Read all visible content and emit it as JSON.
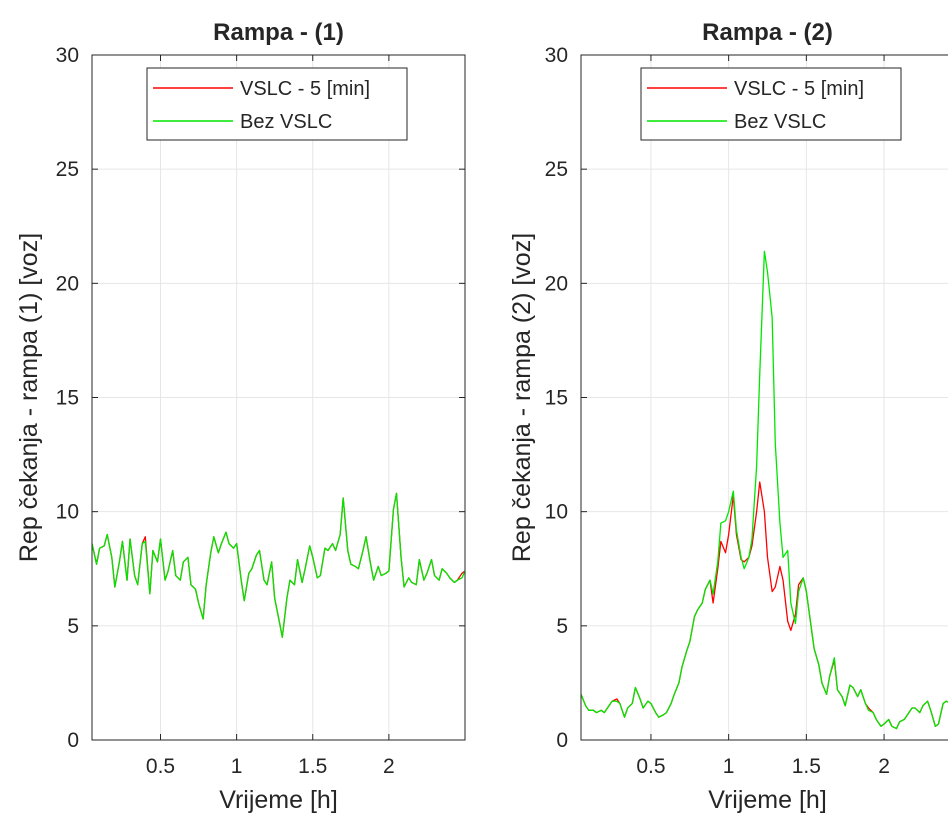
{
  "colors": {
    "series_1": "#ff0000",
    "series_2": "#00e600",
    "grid": "#e6e6e6",
    "axis": "#262626"
  },
  "chart_data": [
    {
      "type": "line",
      "title": "Rampa - (1)",
      "xlabel": "Vrijeme [h]",
      "ylabel": "Rep čekanja - rampa (1) [voz]",
      "xlim": [
        0.05,
        2.5
      ],
      "ylim": [
        0,
        30
      ],
      "xticks": [
        0.5,
        1,
        1.5,
        2
      ],
      "xtick_labels": [
        "0.5",
        "1",
        "1.5",
        "2"
      ],
      "yticks": [
        0,
        5,
        10,
        15,
        20,
        25,
        30
      ],
      "ytick_labels": [
        "0",
        "5",
        "10",
        "15",
        "20",
        "25",
        "30"
      ],
      "grid": true,
      "legend_position": "top-center",
      "series": [
        {
          "name": "VSLC - 5 [min]",
          "x": [
            0.05,
            0.08,
            0.1,
            0.13,
            0.15,
            0.18,
            0.2,
            0.23,
            0.25,
            0.28,
            0.3,
            0.33,
            0.35,
            0.38,
            0.4,
            0.43,
            0.45,
            0.48,
            0.5,
            0.53,
            0.55,
            0.58,
            0.6,
            0.63,
            0.65,
            0.68,
            0.7,
            0.73,
            0.75,
            0.78,
            0.8,
            0.83,
            0.85,
            0.88,
            0.9,
            0.93,
            0.95,
            0.98,
            1.0,
            1.03,
            1.05,
            1.08,
            1.1,
            1.13,
            1.15,
            1.18,
            1.2,
            1.23,
            1.25,
            1.28,
            1.3,
            1.33,
            1.35,
            1.38,
            1.4,
            1.43,
            1.45,
            1.48,
            1.5,
            1.53,
            1.55,
            1.58,
            1.6,
            1.63,
            1.65,
            1.68,
            1.7,
            1.73,
            1.75,
            1.78,
            1.8,
            1.83,
            1.85,
            1.88,
            1.9,
            1.93,
            1.95,
            1.98,
            2.0,
            2.03,
            2.05,
            2.08,
            2.1,
            2.13,
            2.15,
            2.18,
            2.2,
            2.23,
            2.25,
            2.28,
            2.3,
            2.33,
            2.35,
            2.38,
            2.4,
            2.43,
            2.45,
            2.48,
            2.5
          ],
          "y": [
            8.6,
            7.7,
            8.4,
            8.5,
            9.0,
            8.0,
            6.7,
            7.8,
            8.7,
            7.0,
            8.8,
            7.2,
            6.8,
            8.6,
            8.9,
            6.4,
            8.3,
            7.8,
            8.8,
            7.0,
            7.4,
            8.3,
            7.2,
            7.0,
            7.8,
            8.0,
            6.8,
            6.6,
            6.0,
            5.3,
            6.8,
            8.2,
            8.9,
            8.2,
            8.6,
            9.1,
            8.6,
            8.4,
            8.6,
            7.0,
            6.1,
            7.3,
            7.5,
            8.1,
            8.3,
            7.0,
            6.8,
            7.8,
            6.2,
            5.2,
            4.5,
            6.2,
            7.0,
            6.8,
            7.9,
            6.9,
            7.5,
            8.5,
            8.0,
            7.1,
            7.2,
            8.4,
            8.3,
            8.6,
            8.3,
            9.0,
            10.6,
            8.3,
            7.7,
            7.6,
            7.5,
            8.3,
            8.9,
            7.7,
            7.0,
            7.6,
            7.2,
            7.3,
            7.4,
            10.1,
            10.8,
            8.0,
            6.7,
            7.1,
            6.9,
            6.8,
            7.9,
            7.0,
            7.3,
            7.9,
            7.2,
            7.0,
            7.5,
            7.3,
            7.1,
            6.9,
            7.0,
            7.3,
            7.4
          ]
        },
        {
          "name": "Bez VSLC",
          "x": [
            0.05,
            0.08,
            0.1,
            0.13,
            0.15,
            0.18,
            0.2,
            0.23,
            0.25,
            0.28,
            0.3,
            0.33,
            0.35,
            0.38,
            0.4,
            0.43,
            0.45,
            0.48,
            0.5,
            0.53,
            0.55,
            0.58,
            0.6,
            0.63,
            0.65,
            0.68,
            0.7,
            0.73,
            0.75,
            0.78,
            0.8,
            0.83,
            0.85,
            0.88,
            0.9,
            0.93,
            0.95,
            0.98,
            1.0,
            1.03,
            1.05,
            1.08,
            1.1,
            1.13,
            1.15,
            1.18,
            1.2,
            1.23,
            1.25,
            1.28,
            1.3,
            1.33,
            1.35,
            1.38,
            1.4,
            1.43,
            1.45,
            1.48,
            1.5,
            1.53,
            1.55,
            1.58,
            1.6,
            1.63,
            1.65,
            1.68,
            1.7,
            1.73,
            1.75,
            1.78,
            1.8,
            1.83,
            1.85,
            1.88,
            1.9,
            1.93,
            1.95,
            1.98,
            2.0,
            2.03,
            2.05,
            2.08,
            2.1,
            2.13,
            2.15,
            2.18,
            2.2,
            2.23,
            2.25,
            2.28,
            2.3,
            2.33,
            2.35,
            2.38,
            2.4,
            2.43,
            2.45,
            2.48,
            2.5
          ],
          "y": [
            8.6,
            7.7,
            8.4,
            8.5,
            9.0,
            8.0,
            6.7,
            7.8,
            8.7,
            7.0,
            8.8,
            7.2,
            6.8,
            8.6,
            8.7,
            6.4,
            8.3,
            7.8,
            8.8,
            7.0,
            7.4,
            8.3,
            7.2,
            7.0,
            7.8,
            8.0,
            6.8,
            6.6,
            6.0,
            5.3,
            6.8,
            8.2,
            8.9,
            8.2,
            8.6,
            9.1,
            8.6,
            8.4,
            8.6,
            7.0,
            6.1,
            7.3,
            7.5,
            8.1,
            8.3,
            7.0,
            6.8,
            7.8,
            6.2,
            5.2,
            4.5,
            6.2,
            7.0,
            6.8,
            7.9,
            6.9,
            7.5,
            8.5,
            8.0,
            7.1,
            7.2,
            8.4,
            8.3,
            8.6,
            8.3,
            9.0,
            10.6,
            8.3,
            7.7,
            7.6,
            7.5,
            8.3,
            8.9,
            7.7,
            7.0,
            7.6,
            7.2,
            7.3,
            7.4,
            10.1,
            10.8,
            8.0,
            6.7,
            7.1,
            6.9,
            6.8,
            7.9,
            7.0,
            7.3,
            7.9,
            7.2,
            7.0,
            7.5,
            7.3,
            7.1,
            6.9,
            7.0,
            7.1,
            7.4
          ]
        }
      ]
    },
    {
      "type": "line",
      "title": "Rampa - (2)",
      "xlabel": "Vrijeme [h]",
      "ylabel": "Rep čekanja - rampa (2) [voz]",
      "xlim": [
        0.05,
        2.45
      ],
      "ylim": [
        0,
        30
      ],
      "xticks": [
        0.5,
        1,
        1.5,
        2
      ],
      "xtick_labels": [
        "0.5",
        "1",
        "1.5",
        "2"
      ],
      "yticks": [
        0,
        5,
        10,
        15,
        20,
        25,
        30
      ],
      "ytick_labels": [
        "0",
        "5",
        "10",
        "15",
        "20",
        "25",
        "30"
      ],
      "grid": true,
      "legend_position": "top-center",
      "series": [
        {
          "name": "VSLC - 5 [min]",
          "x": [
            0.05,
            0.08,
            0.1,
            0.13,
            0.15,
            0.18,
            0.2,
            0.23,
            0.25,
            0.28,
            0.3,
            0.33,
            0.35,
            0.38,
            0.4,
            0.43,
            0.45,
            0.48,
            0.5,
            0.53,
            0.55,
            0.58,
            0.6,
            0.63,
            0.65,
            0.68,
            0.7,
            0.73,
            0.75,
            0.78,
            0.8,
            0.83,
            0.85,
            0.88,
            0.9,
            0.93,
            0.95,
            0.98,
            1.0,
            1.03,
            1.05,
            1.08,
            1.1,
            1.13,
            1.15,
            1.18,
            1.2,
            1.23,
            1.25,
            1.28,
            1.3,
            1.33,
            1.35,
            1.38,
            1.4,
            1.43,
            1.45,
            1.48,
            1.5,
            1.53,
            1.55,
            1.58,
            1.6,
            1.63,
            1.65,
            1.68,
            1.7,
            1.73,
            1.75,
            1.78,
            1.8,
            1.83,
            1.85,
            1.88,
            1.9,
            1.93,
            1.95,
            1.98,
            2.0,
            2.03,
            2.05,
            2.08,
            2.1,
            2.13,
            2.15,
            2.18,
            2.2,
            2.23,
            2.25,
            2.28,
            2.3,
            2.33,
            2.35,
            2.38,
            2.4,
            2.43,
            2.45
          ],
          "y": [
            2.0,
            1.5,
            1.3,
            1.3,
            1.2,
            1.3,
            1.2,
            1.5,
            1.7,
            1.8,
            1.6,
            1.0,
            1.4,
            1.6,
            2.3,
            1.8,
            1.4,
            1.7,
            1.6,
            1.2,
            1.0,
            1.1,
            1.2,
            1.6,
            2.0,
            2.5,
            3.2,
            3.9,
            4.3,
            5.4,
            5.7,
            6.0,
            6.6,
            7.0,
            6.0,
            7.5,
            8.7,
            8.2,
            9.0,
            10.7,
            9.0,
            7.9,
            7.8,
            8.0,
            8.5,
            10.0,
            11.3,
            10.0,
            8.0,
            6.5,
            6.7,
            7.6,
            7.0,
            5.2,
            4.8,
            5.5,
            6.8,
            7.1,
            6.5,
            5.0,
            4.0,
            3.3,
            2.5,
            2.0,
            2.8,
            3.5,
            2.2,
            1.9,
            1.5,
            2.4,
            2.3,
            1.9,
            2.2,
            1.6,
            1.4,
            1.2,
            0.9,
            0.6,
            0.7,
            0.9,
            0.6,
            0.5,
            0.8,
            0.9,
            1.1,
            1.4,
            1.4,
            1.2,
            1.5,
            1.7,
            1.3,
            0.6,
            0.7,
            1.6,
            1.7,
            1.6,
            1.7
          ]
        },
        {
          "name": "Bez VSLC",
          "x": [
            0.05,
            0.08,
            0.1,
            0.13,
            0.15,
            0.18,
            0.2,
            0.23,
            0.25,
            0.28,
            0.3,
            0.33,
            0.35,
            0.38,
            0.4,
            0.43,
            0.45,
            0.48,
            0.5,
            0.53,
            0.55,
            0.58,
            0.6,
            0.63,
            0.65,
            0.68,
            0.7,
            0.73,
            0.75,
            0.78,
            0.8,
            0.83,
            0.85,
            0.88,
            0.9,
            0.93,
            0.95,
            0.98,
            1.0,
            1.03,
            1.05,
            1.08,
            1.1,
            1.13,
            1.15,
            1.18,
            1.2,
            1.23,
            1.25,
            1.28,
            1.3,
            1.33,
            1.35,
            1.38,
            1.4,
            1.43,
            1.45,
            1.48,
            1.5,
            1.53,
            1.55,
            1.58,
            1.6,
            1.63,
            1.65,
            1.68,
            1.7,
            1.73,
            1.75,
            1.78,
            1.8,
            1.83,
            1.85,
            1.88,
            1.9,
            1.93,
            1.95,
            1.98,
            2.0,
            2.03,
            2.05,
            2.08,
            2.1,
            2.13,
            2.15,
            2.18,
            2.2,
            2.23,
            2.25,
            2.28,
            2.3,
            2.33,
            2.35,
            2.38,
            2.4,
            2.43,
            2.45
          ],
          "y": [
            2.0,
            1.5,
            1.3,
            1.3,
            1.2,
            1.3,
            1.2,
            1.5,
            1.7,
            1.7,
            1.6,
            1.0,
            1.4,
            1.6,
            2.3,
            1.8,
            1.4,
            1.7,
            1.6,
            1.2,
            1.0,
            1.1,
            1.2,
            1.6,
            2.0,
            2.5,
            3.2,
            3.9,
            4.3,
            5.4,
            5.7,
            6.0,
            6.6,
            7.0,
            6.4,
            7.8,
            9.5,
            9.6,
            10.0,
            10.9,
            9.2,
            8.0,
            7.5,
            8.0,
            8.8,
            12.0,
            16.0,
            21.4,
            20.5,
            18.5,
            13.0,
            9.5,
            8.0,
            8.3,
            6.0,
            5.1,
            6.5,
            7.1,
            6.5,
            5.0,
            4.0,
            3.3,
            2.5,
            2.0,
            2.8,
            3.6,
            2.2,
            1.9,
            1.5,
            2.4,
            2.3,
            1.9,
            2.2,
            1.6,
            1.3,
            1.2,
            0.9,
            0.6,
            0.7,
            0.9,
            0.6,
            0.5,
            0.8,
            0.9,
            1.1,
            1.4,
            1.4,
            1.2,
            1.5,
            1.7,
            1.3,
            0.6,
            0.7,
            1.6,
            1.7,
            1.6,
            1.7
          ]
        }
      ]
    }
  ]
}
